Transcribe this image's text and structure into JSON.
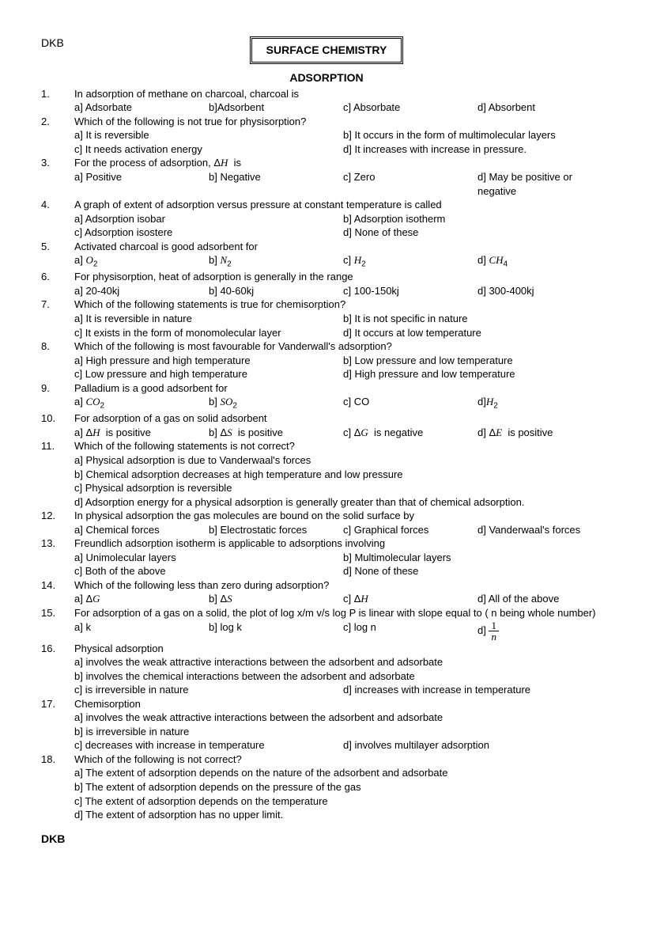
{
  "header": "DKB",
  "title": "SURFACE CHEMISTRY",
  "subtitle": "ADSORPTION",
  "footer": "DKB",
  "questions": [
    {
      "n": "1.",
      "text": "In adsorption of methane on charcoal, charcoal is",
      "layout": "4",
      "opts": [
        "a] Adsorbate",
        "b]Adsorbent",
        "c] Absorbate",
        "d] Absorbent"
      ]
    },
    {
      "n": "2.",
      "text": "Which of the following is not true for physisorption?",
      "layout": "2",
      "opts": [
        "a] It is reversible",
        "b] It occurs in the form of multimolecular layers",
        "c] It needs activation  energy",
        "d] It increases with increase in pressure."
      ]
    },
    {
      "n": "3.",
      "text": "For the process of adsorption, Δ<span class='ital'>H</span>&nbsp; is",
      "layout": "4",
      "opts": [
        "a] Positive",
        "b] Negative",
        "c] Zero",
        "d] May be positive or negative"
      ]
    },
    {
      "n": "4.",
      "text": "A  graph of extent of adsorption versus pressure at constant temperature is called",
      "layout": "2",
      "opts": [
        "a] Adsorption isobar",
        "b] Adsorption isotherm",
        "c] Adsorption isostere",
        "d] None  of these"
      ]
    },
    {
      "n": "5.",
      "text": "Activated charcoal is good adsorbent for",
      "layout": "4",
      "opts": [
        "a] <span class='ital'>O</span><span class='sub'>2</span>",
        "b] <span class='ital'>N</span><span class='sub'>2</span>",
        "c] <span class='ital'>H</span><span class='sub'>2</span>",
        "d] <span class='ital'>CH</span><span class='sub'>4</span>"
      ]
    },
    {
      "n": "6.",
      "text": "For physisorption, heat of adsorption is generally in the range",
      "layout": "4",
      "opts": [
        "a] 20-40kj",
        "b] 40-60kj",
        "c] 100-150kj",
        "d] 300-400kj"
      ]
    },
    {
      "n": "7.",
      "text": "Which of the following statements is true for chemisorption?",
      "layout": "2",
      "opts": [
        "a] It is reversible in nature",
        "b] It is not specific in nature",
        "c] It exists in the form of monomolecular layer",
        "d] It occurs at low temperature"
      ]
    },
    {
      "n": "8.",
      "text": "Which of the following is most favourable  for Vanderwall's adsorption?",
      "layout": "2",
      "opts": [
        "a] High pressure and high temperature",
        "b] Low pressure and low temperature",
        "c] Low pressure and high temperature",
        "d] High pressure and low temperature"
      ]
    },
    {
      "n": "9.",
      "text": "Palladium is a good adsorbent for",
      "layout": "4",
      "opts": [
        "a] <span class='ital'>CO</span><span class='sub'>2</span>",
        "b] <span class='ital'>SO</span><span class='sub'>2</span>",
        "c] CO",
        "d]<span class='ital'>H</span><span class='sub'>2</span>"
      ]
    },
    {
      "n": "10.",
      "text": "For adsorption of a gas on solid adsorbent",
      "layout": "4",
      "opts": [
        "a] Δ<span class='ital'>H</span>&nbsp; is positive",
        "b] Δ<span class='ital'>S</span>&nbsp; is positive",
        "c] Δ<span class='ital'>G</span>&nbsp; is negative",
        "d] Δ<span class='ital'>E</span>&nbsp; is positive"
      ]
    },
    {
      "n": "11.",
      "text": "Which of the following statements is not correct?",
      "layout": "1",
      "opts": [
        "a] Physical adsorption is due to Vanderwaal's forces",
        "b] Chemical adsorption decreases at high temperature and low pressure",
        "c] Physical adsorption is reversible",
        "d] Adsorption energy for a physical adsorption is generally greater than  that of chemical adsorption."
      ]
    },
    {
      "n": "12.",
      "text": "In physical  adsorption the gas molecules are bound on the solid surface by",
      "layout": "4",
      "opts": [
        "a] Chemical forces",
        "b] Electrostatic forces",
        "c] Graphical forces",
        "d] Vanderwaal's forces"
      ]
    },
    {
      "n": "13.",
      "text": "Freundlich adsorption isotherm is applicable to adsorptions involving",
      "layout": "2",
      "opts": [
        "a] Unimolecular layers",
        "b] Multimolecular layers",
        "c] Both of the above",
        "d] None of these"
      ]
    },
    {
      "n": "14.",
      "text": "Which of the following less than zero during adsorption?",
      "layout": "4",
      "opts": [
        "a] Δ<span class='ital'>G</span>",
        "b] Δ<span class='ital'>S</span>",
        "c] Δ<span class='ital'>H</span>",
        "d] All of the above"
      ]
    },
    {
      "n": "15.",
      "text": "For adsorption of a gas on a solid, the plot of log x/m  v/s log P is linear with slope equal  to ( n being whole number)",
      "layout": "4",
      "opts": [
        "a] k",
        "b] log k",
        "c] log n",
        "d] <span class='frac'><span class='top'>1</span><span class='bot'><span class='ital'>n</span></span></span>"
      ]
    },
    {
      "n": "16.",
      "text": "Physical adsorption",
      "layout": "mix",
      "opts": [
        "a] involves the weak attractive interactions between the adsorbent and adsorbate",
        "b] involves the chemical interactions between the adsorbent and adsorbate",
        "c] is irreversible in nature",
        "d] increases with increase in temperature"
      ]
    },
    {
      "n": "17.",
      "text": "Chemisorption",
      "layout": "mix",
      "opts": [
        "a] involves the weak attractive interactions between the adsorbent and adsorbate",
        "b] is irreversible in nature",
        "c] decreases with increase in temperature",
        "d] involves multilayer adsorption"
      ]
    },
    {
      "n": "18.",
      "text": "Which of the following is not correct?",
      "layout": "1",
      "opts": [
        "a] The extent of adsorption depends on the nature of the adsorbent and adsorbate",
        "b] The extent of adsorption depends on the pressure of the gas",
        "c] The extent of adsorption depends on the temperature",
        "d] The extent of adsorption has no upper limit."
      ]
    }
  ]
}
